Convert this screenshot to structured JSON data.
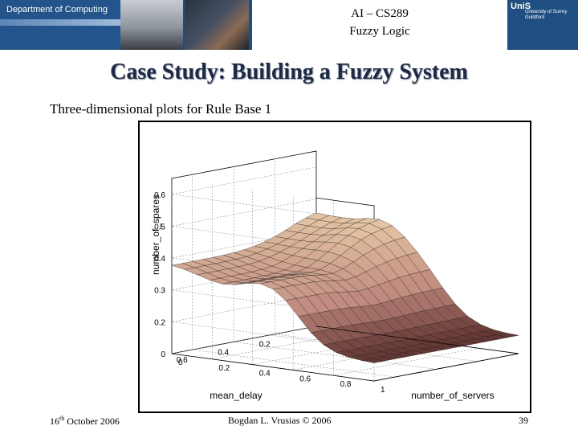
{
  "header": {
    "department": "Department of Computing",
    "course": "AI – CS289",
    "subject": "Fuzzy Logic",
    "logo_mark": "UniS",
    "logo_lines": [
      "University of Surrey",
      "Guildford"
    ]
  },
  "slide": {
    "title": "Case Study: Building a Fuzzy System",
    "subtitle": "Three-dimensional plots for Rule Base 1"
  },
  "chart_data": {
    "type": "surface",
    "xlabel": "mean_delay",
    "ylabel": "number_of_servers",
    "zlabel": "number_of_spares",
    "x_ticks": [
      "0.2",
      "0.4",
      "0.6"
    ],
    "y_ticks": [
      "0",
      "0.2",
      "0.4",
      "0.6",
      "0.8",
      "1"
    ],
    "z_ticks": [
      "0",
      "0.2",
      "0.3",
      "0.4",
      "0.5",
      "0.6"
    ],
    "xlim": [
      0,
      0.7
    ],
    "ylim": [
      0,
      1
    ],
    "zlim": [
      0.1,
      0.65
    ],
    "grid": true,
    "colormap": [
      "#ffffe6",
      "#e7c9a6",
      "#c08a7e",
      "#3a1010"
    ]
  },
  "footer": {
    "date_day": "16",
    "date_suffix": "th",
    "date_rest": " October 2006",
    "author": "Bogdan L. Vrusias © 2006",
    "page": "39"
  }
}
